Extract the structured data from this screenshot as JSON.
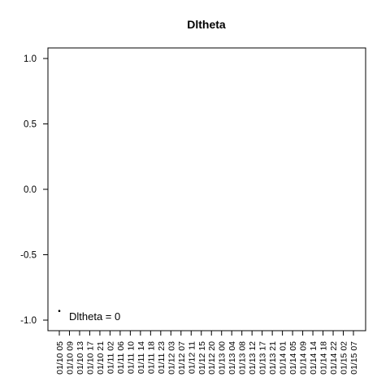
{
  "chart_data": {
    "type": "scatter",
    "title": "Dltheta",
    "xlabel": "",
    "ylabel": "",
    "ylim": [
      -1.0,
      1.0
    ],
    "yticks": [
      "1.0",
      "0.5",
      "0.0",
      "-0.5",
      "-1.0"
    ],
    "ytick_values": [
      1.0,
      0.5,
      0.0,
      -0.5,
      -1.0
    ],
    "x_tick_labels": [
      "01/10 05",
      "01/10 09",
      "01/10 13",
      "01/10 17",
      "01/10 21",
      "01/11 02",
      "01/11 06",
      "01/11 10",
      "01/11 14",
      "01/11 18",
      "01/11 23",
      "01/12 03",
      "01/12 07",
      "01/12 11",
      "01/12 15",
      "01/12 20",
      "01/13 00",
      "01/13 04",
      "01/13 08",
      "01/13 12",
      "01/13 17",
      "01/13 21",
      "01/14 01",
      "01/14 05",
      "01/14 09",
      "01/14 14",
      "01/14 18",
      "01/14 22",
      "01/15 02",
      "01/15 07"
    ],
    "points": [
      {
        "x": "01/10 05",
        "y": -0.93
      }
    ],
    "annotation": "Dltheta = 0",
    "grid": false
  }
}
